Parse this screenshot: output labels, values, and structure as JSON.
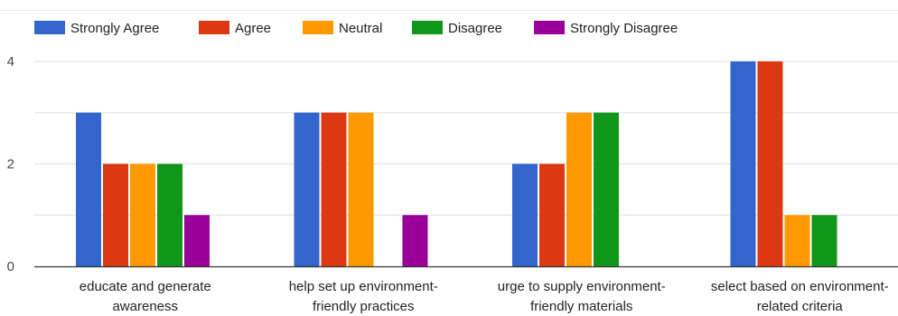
{
  "chart_data": {
    "type": "bar",
    "categories": [
      [
        "educate and generate",
        "awareness"
      ],
      [
        "help set up environment-",
        "friendly practices"
      ],
      [
        "urge to supply environment-",
        "friendly materials"
      ],
      [
        "select based on environment-",
        "related criteria"
      ]
    ],
    "series": [
      {
        "name": "Strongly Agree",
        "color": "#3366cc",
        "values": [
          3,
          3,
          2,
          4
        ]
      },
      {
        "name": "Agree",
        "color": "#dc3912",
        "values": [
          2,
          3,
          2,
          4
        ]
      },
      {
        "name": "Neutral",
        "color": "#ff9900",
        "values": [
          2,
          3,
          3,
          1
        ]
      },
      {
        "name": "Disagree",
        "color": "#109618",
        "values": [
          2,
          0,
          3,
          1
        ]
      },
      {
        "name": "Strongly Disagree",
        "color": "#990099",
        "values": [
          1,
          1,
          0,
          0
        ]
      }
    ],
    "ylim": [
      0,
      4
    ],
    "yticks": [
      0,
      2,
      4
    ],
    "grid": true,
    "legend_position": "top-left"
  }
}
